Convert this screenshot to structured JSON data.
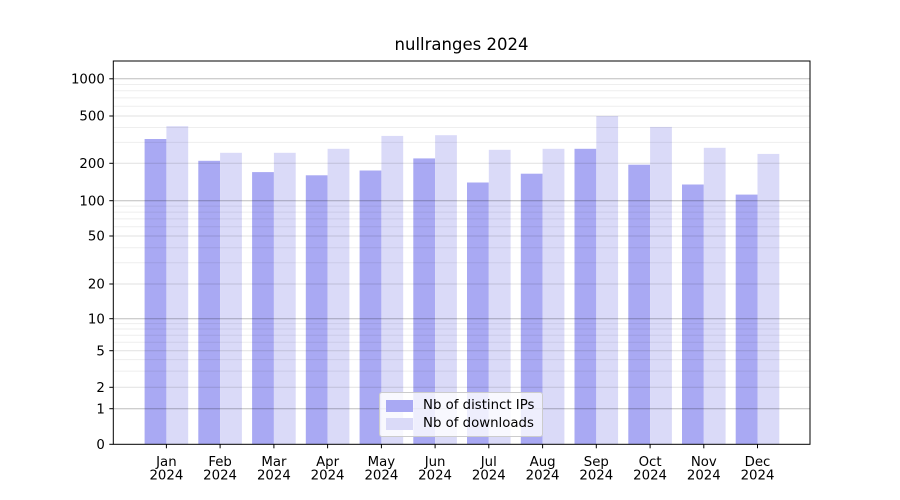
{
  "title": "nullranges 2024",
  "legend": {
    "items": [
      {
        "label": "Nb of distinct IPs",
        "color": "#a9a9f3"
      },
      {
        "label": "Nb of downloads",
        "color": "#dadaf8"
      }
    ]
  },
  "chart_data": {
    "type": "bar",
    "title": "nullranges 2024",
    "categories": [
      "Jan",
      "Feb",
      "Mar",
      "Apr",
      "May",
      "Jun",
      "Jul",
      "Aug",
      "Sep",
      "Oct",
      "Nov",
      "Dec"
    ],
    "category_year": "2024",
    "series": [
      {
        "name": "Nb of distinct IPs",
        "color": "#a9a9f3",
        "values": [
          320,
          210,
          170,
          160,
          175,
          220,
          140,
          165,
          265,
          195,
          135,
          112
        ]
      },
      {
        "name": "Nb of downloads",
        "color": "#dadaf8",
        "values": [
          410,
          245,
          245,
          265,
          340,
          345,
          260,
          265,
          500,
          405,
          270,
          240
        ]
      }
    ],
    "yscale": "symlog",
    "ylim": [
      0,
      1000
    ],
    "y_ticks": [
      0,
      1,
      2,
      5,
      10,
      20,
      50,
      100,
      200,
      500,
      1000
    ],
    "grid": true,
    "legend_position": "lower center"
  }
}
